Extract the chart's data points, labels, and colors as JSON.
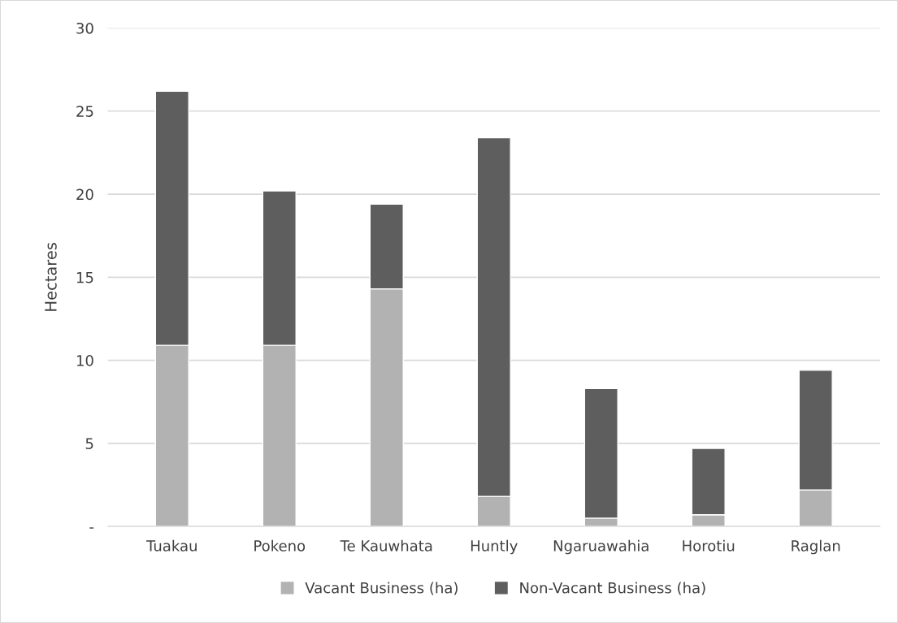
{
  "chart_data": {
    "type": "bar",
    "ylabel": "Hectares",
    "stacked": true,
    "categories": [
      "Tuakau",
      "Pokeno",
      "Te Kauwhata",
      "Huntly",
      "Ngaruawahia",
      "Horotiu",
      "Raglan"
    ],
    "series": [
      {
        "name": "Vacant Business (ha)",
        "color": "#b2b2b2",
        "values": [
          10.9,
          10.9,
          14.3,
          1.8,
          0.5,
          0.7,
          2.2
        ]
      },
      {
        "name": "Non-Vacant Business (ha)",
        "color": "#5e5e5e",
        "values": [
          15.3,
          9.3,
          5.1,
          21.6,
          7.8,
          4.0,
          7.2
        ]
      }
    ],
    "ylim": [
      0,
      30
    ],
    "yticks": [
      {
        "value": 0,
        "label": "-"
      },
      5,
      10,
      15,
      20,
      25,
      30
    ],
    "grid": "y",
    "legend": "bottom"
  }
}
